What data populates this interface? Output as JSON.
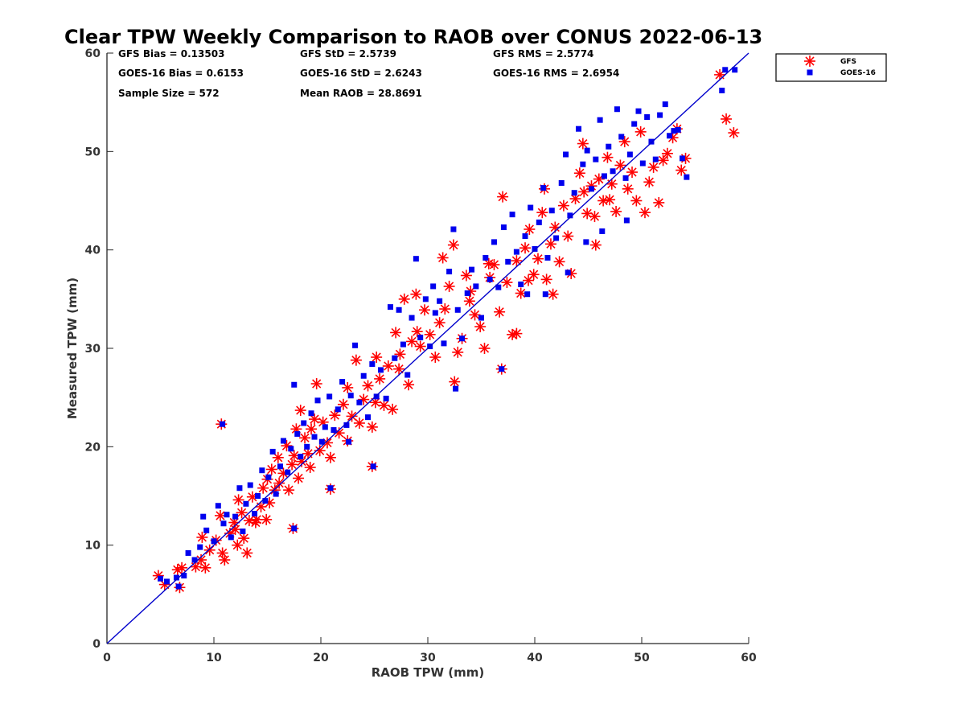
{
  "chart_data": {
    "type": "scatter",
    "title": "Clear TPW Weekly Comparison to RAOB over CONUS 2022-06-13",
    "xlabel": "RAOB TPW (mm)",
    "ylabel": "Measured TPW (mm)",
    "xlim": [
      0,
      60
    ],
    "ylim": [
      0,
      60
    ],
    "xticks": [
      0,
      10,
      20,
      30,
      40,
      50,
      60
    ],
    "yticks": [
      0,
      10,
      20,
      30,
      40,
      50,
      60
    ],
    "grid": false,
    "legend_position": "outside-top-right",
    "reference_line": {
      "name": "1:1 line",
      "color": "#0000cc",
      "from": [
        0,
        0
      ],
      "to": [
        60,
        60
      ]
    },
    "stats": [
      "GFS Bias = 0.13503",
      "GFS StD = 2.5739",
      "GFS RMS = 2.5774",
      "GOES-16 Bias = 0.6153",
      "GOES-16 StD = 2.6243",
      "GOES-16 RMS = 2.6954",
      "Sample Size = 572",
      "Mean RAOB = 28.8691"
    ],
    "series": [
      {
        "name": "GFS",
        "marker": "asterisk",
        "color": "#ff0000",
        "points": [
          [
            4.8,
            6.9
          ],
          [
            5.4,
            6.0
          ],
          [
            6.6,
            7.5
          ],
          [
            7.0,
            7.7
          ],
          [
            6.8,
            5.7
          ],
          [
            8.3,
            7.8
          ],
          [
            8.8,
            8.5
          ],
          [
            9.2,
            7.7
          ],
          [
            8.9,
            10.8
          ],
          [
            9.6,
            9.5
          ],
          [
            10.2,
            10.5
          ],
          [
            10.8,
            9.2
          ],
          [
            11.0,
            8.5
          ],
          [
            10.6,
            13.0
          ],
          [
            11.5,
            11.2
          ],
          [
            11.9,
            12.3
          ],
          [
            12.3,
            14.6
          ],
          [
            12.2,
            10.0
          ],
          [
            12.6,
            13.3
          ],
          [
            12.8,
            10.7
          ],
          [
            13.1,
            9.2
          ],
          [
            13.3,
            12.5
          ],
          [
            13.6,
            14.9
          ],
          [
            14.0,
            12.6
          ],
          [
            14.4,
            13.9
          ],
          [
            14.6,
            15.8
          ],
          [
            14.9,
            12.6
          ],
          [
            15.2,
            14.3
          ],
          [
            15.4,
            17.7
          ],
          [
            15.7,
            15.6
          ],
          [
            16.0,
            18.9
          ],
          [
            16.1,
            16.3
          ],
          [
            16.5,
            17.3
          ],
          [
            16.8,
            20.1
          ],
          [
            17.0,
            15.6
          ],
          [
            17.3,
            18.2
          ],
          [
            17.5,
            19.1
          ],
          [
            17.7,
            21.8
          ],
          [
            17.9,
            16.8
          ],
          [
            18.2,
            18.5
          ],
          [
            18.5,
            20.9
          ],
          [
            18.8,
            19.3
          ],
          [
            19.1,
            21.8
          ],
          [
            19.4,
            22.8
          ],
          [
            19.6,
            26.4
          ],
          [
            19.9,
            19.6
          ],
          [
            20.2,
            22.5
          ],
          [
            20.6,
            20.4
          ],
          [
            20.9,
            18.9
          ],
          [
            21.3,
            23.2
          ],
          [
            21.7,
            21.4
          ],
          [
            22.1,
            24.3
          ],
          [
            22.5,
            26.0
          ],
          [
            22.9,
            23.1
          ],
          [
            23.3,
            28.8
          ],
          [
            23.6,
            22.4
          ],
          [
            24.0,
            24.8
          ],
          [
            24.4,
            26.2
          ],
          [
            24.8,
            22.0
          ],
          [
            25.2,
            29.1
          ],
          [
            25.5,
            26.9
          ],
          [
            25.9,
            24.2
          ],
          [
            26.3,
            28.2
          ],
          [
            26.7,
            23.8
          ],
          [
            27.0,
            31.6
          ],
          [
            27.4,
            29.4
          ],
          [
            27.8,
            35.0
          ],
          [
            28.2,
            26.3
          ],
          [
            28.5,
            30.7
          ],
          [
            28.9,
            35.5
          ],
          [
            29.3,
            30.2
          ],
          [
            29.7,
            33.9
          ],
          [
            30.2,
            31.4
          ],
          [
            30.7,
            29.1
          ],
          [
            31.1,
            32.6
          ],
          [
            31.6,
            34.0
          ],
          [
            32.0,
            36.3
          ],
          [
            32.4,
            40.5
          ],
          [
            32.8,
            29.6
          ],
          [
            33.2,
            31.0
          ],
          [
            33.6,
            37.4
          ],
          [
            34.0,
            35.8
          ],
          [
            34.4,
            33.4
          ],
          [
            34.9,
            32.2
          ],
          [
            35.3,
            30.0
          ],
          [
            35.8,
            37.2
          ],
          [
            36.2,
            38.5
          ],
          [
            36.7,
            33.7
          ],
          [
            37.0,
            45.4
          ],
          [
            37.4,
            36.7
          ],
          [
            37.9,
            31.4
          ],
          [
            38.3,
            38.9
          ],
          [
            38.7,
            35.6
          ],
          [
            39.1,
            40.2
          ],
          [
            39.5,
            42.1
          ],
          [
            39.9,
            37.5
          ],
          [
            40.3,
            39.1
          ],
          [
            40.7,
            43.8
          ],
          [
            41.1,
            37.0
          ],
          [
            41.5,
            40.6
          ],
          [
            41.9,
            42.3
          ],
          [
            42.3,
            38.8
          ],
          [
            42.7,
            44.5
          ],
          [
            43.1,
            41.4
          ],
          [
            43.4,
            37.6
          ],
          [
            43.8,
            45.2
          ],
          [
            44.2,
            47.8
          ],
          [
            44.5,
            50.8
          ],
          [
            44.9,
            43.7
          ],
          [
            45.3,
            46.5
          ],
          [
            45.7,
            40.5
          ],
          [
            46.0,
            47.2
          ],
          [
            46.4,
            45.0
          ],
          [
            46.8,
            49.4
          ],
          [
            47.2,
            46.7
          ],
          [
            47.6,
            43.9
          ],
          [
            48.0,
            48.6
          ],
          [
            48.4,
            51.0
          ],
          [
            48.7,
            46.2
          ],
          [
            49.1,
            47.9
          ],
          [
            49.5,
            45.0
          ],
          [
            49.9,
            52.0
          ],
          [
            50.3,
            43.8
          ],
          [
            50.7,
            46.9
          ],
          [
            51.1,
            48.4
          ],
          [
            51.6,
            44.8
          ],
          [
            52.0,
            49.1
          ],
          [
            52.4,
            49.8
          ],
          [
            52.9,
            51.4
          ],
          [
            53.3,
            52.3
          ],
          [
            53.7,
            48.1
          ],
          [
            54.1,
            49.3
          ],
          [
            57.3,
            57.8
          ],
          [
            57.9,
            53.3
          ],
          [
            58.6,
            51.9
          ],
          [
            10.7,
            22.3
          ],
          [
            24.8,
            18.0
          ],
          [
            17.4,
            11.7
          ],
          [
            20.9,
            15.7
          ],
          [
            36.9,
            27.9
          ],
          [
            32.5,
            26.6
          ],
          [
            31.4,
            39.2
          ],
          [
            35.7,
            38.6
          ],
          [
            44.6,
            45.9
          ],
          [
            45.6,
            43.4
          ],
          [
            40.9,
            46.2
          ],
          [
            41.7,
            35.5
          ],
          [
            38.3,
            31.5
          ],
          [
            47.0,
            45.1
          ],
          [
            25.1,
            24.5
          ],
          [
            29.0,
            31.7
          ],
          [
            22.5,
            20.6
          ],
          [
            15.0,
            16.7
          ],
          [
            13.9,
            12.3
          ],
          [
            12.0,
            11.6
          ],
          [
            19.0,
            17.9
          ],
          [
            18.1,
            23.7
          ],
          [
            27.3,
            27.9
          ],
          [
            33.9,
            34.8
          ],
          [
            39.4,
            36.9
          ]
        ]
      },
      {
        "name": "GOES-16",
        "marker": "square",
        "color": "#0000ee",
        "points": [
          [
            5.0,
            6.6
          ],
          [
            5.6,
            6.3
          ],
          [
            6.5,
            6.7
          ],
          [
            7.2,
            6.9
          ],
          [
            6.7,
            5.8
          ],
          [
            7.6,
            9.2
          ],
          [
            8.2,
            8.5
          ],
          [
            8.7,
            9.8
          ],
          [
            9.3,
            11.5
          ],
          [
            9.0,
            12.9
          ],
          [
            10.0,
            10.4
          ],
          [
            10.4,
            14.0
          ],
          [
            10.9,
            12.2
          ],
          [
            11.2,
            13.1
          ],
          [
            11.6,
            10.8
          ],
          [
            12.0,
            12.9
          ],
          [
            12.4,
            15.8
          ],
          [
            12.7,
            11.4
          ],
          [
            13.0,
            14.2
          ],
          [
            13.4,
            16.1
          ],
          [
            13.8,
            13.2
          ],
          [
            14.1,
            15.0
          ],
          [
            14.5,
            17.6
          ],
          [
            14.8,
            14.5
          ],
          [
            15.1,
            16.9
          ],
          [
            15.5,
            19.5
          ],
          [
            15.8,
            15.2
          ],
          [
            16.2,
            18.0
          ],
          [
            16.5,
            20.6
          ],
          [
            16.9,
            17.4
          ],
          [
            17.2,
            19.8
          ],
          [
            17.5,
            26.3
          ],
          [
            17.8,
            21.3
          ],
          [
            18.1,
            19.0
          ],
          [
            18.4,
            22.4
          ],
          [
            18.7,
            20.0
          ],
          [
            19.1,
            23.4
          ],
          [
            19.4,
            21.0
          ],
          [
            19.7,
            24.7
          ],
          [
            20.1,
            20.5
          ],
          [
            20.4,
            22.0
          ],
          [
            20.8,
            25.1
          ],
          [
            21.2,
            21.7
          ],
          [
            21.6,
            23.8
          ],
          [
            22.0,
            26.6
          ],
          [
            22.4,
            22.2
          ],
          [
            22.8,
            25.2
          ],
          [
            23.2,
            30.3
          ],
          [
            23.6,
            24.5
          ],
          [
            24.0,
            27.2
          ],
          [
            24.4,
            23.0
          ],
          [
            24.8,
            28.4
          ],
          [
            25.2,
            25.1
          ],
          [
            25.6,
            27.8
          ],
          [
            26.1,
            24.9
          ],
          [
            26.5,
            34.2
          ],
          [
            26.9,
            29.0
          ],
          [
            27.3,
            33.9
          ],
          [
            27.7,
            30.4
          ],
          [
            28.1,
            27.3
          ],
          [
            28.5,
            33.1
          ],
          [
            28.9,
            39.1
          ],
          [
            29.3,
            31.1
          ],
          [
            29.8,
            35.0
          ],
          [
            30.2,
            30.2
          ],
          [
            30.7,
            33.6
          ],
          [
            31.1,
            34.8
          ],
          [
            31.5,
            30.5
          ],
          [
            32.0,
            37.8
          ],
          [
            32.4,
            42.1
          ],
          [
            32.8,
            33.9
          ],
          [
            33.2,
            31.0
          ],
          [
            33.7,
            35.6
          ],
          [
            34.1,
            38.0
          ],
          [
            34.5,
            36.3
          ],
          [
            35.0,
            33.1
          ],
          [
            35.4,
            39.2
          ],
          [
            35.8,
            37.0
          ],
          [
            36.2,
            40.8
          ],
          [
            36.6,
            36.2
          ],
          [
            37.1,
            42.3
          ],
          [
            37.5,
            38.8
          ],
          [
            37.9,
            43.6
          ],
          [
            38.3,
            39.8
          ],
          [
            38.7,
            36.5
          ],
          [
            39.1,
            41.4
          ],
          [
            39.6,
            44.3
          ],
          [
            40.0,
            40.1
          ],
          [
            40.4,
            42.8
          ],
          [
            40.8,
            46.3
          ],
          [
            41.2,
            39.2
          ],
          [
            41.6,
            44.0
          ],
          [
            42.0,
            41.2
          ],
          [
            42.5,
            46.8
          ],
          [
            42.9,
            49.7
          ],
          [
            43.3,
            43.5
          ],
          [
            43.7,
            45.8
          ],
          [
            44.1,
            52.3
          ],
          [
            44.5,
            48.7
          ],
          [
            44.9,
            50.1
          ],
          [
            45.3,
            46.2
          ],
          [
            45.7,
            49.2
          ],
          [
            46.1,
            53.2
          ],
          [
            46.5,
            47.5
          ],
          [
            46.9,
            50.5
          ],
          [
            47.3,
            48.0
          ],
          [
            47.7,
            54.3
          ],
          [
            48.1,
            51.5
          ],
          [
            48.5,
            47.3
          ],
          [
            48.9,
            49.7
          ],
          [
            49.3,
            52.8
          ],
          [
            49.7,
            54.1
          ],
          [
            50.1,
            48.8
          ],
          [
            50.5,
            53.5
          ],
          [
            50.9,
            51.0
          ],
          [
            51.3,
            49.2
          ],
          [
            51.7,
            53.7
          ],
          [
            52.2,
            54.8
          ],
          [
            52.6,
            51.6
          ],
          [
            53.0,
            52.1
          ],
          [
            53.4,
            52.2
          ],
          [
            53.8,
            49.3
          ],
          [
            54.2,
            47.4
          ],
          [
            57.5,
            56.2
          ],
          [
            57.8,
            58.3
          ],
          [
            58.7,
            58.3
          ],
          [
            10.8,
            22.3
          ],
          [
            24.9,
            18.0
          ],
          [
            17.5,
            11.7
          ],
          [
            20.9,
            15.8
          ],
          [
            36.9,
            27.9
          ],
          [
            32.6,
            25.9
          ],
          [
            39.3,
            35.5
          ],
          [
            41.0,
            35.5
          ],
          [
            43.1,
            37.7
          ],
          [
            44.8,
            40.8
          ],
          [
            46.3,
            41.9
          ],
          [
            48.6,
            43.0
          ],
          [
            30.5,
            36.3
          ],
          [
            22.6,
            20.5
          ]
        ]
      }
    ]
  },
  "legend": {
    "items": [
      {
        "label": "GFS",
        "marker": "asterisk",
        "color": "#ff0000"
      },
      {
        "label": "GOES-16",
        "marker": "square",
        "color": "#0000ee"
      }
    ]
  }
}
